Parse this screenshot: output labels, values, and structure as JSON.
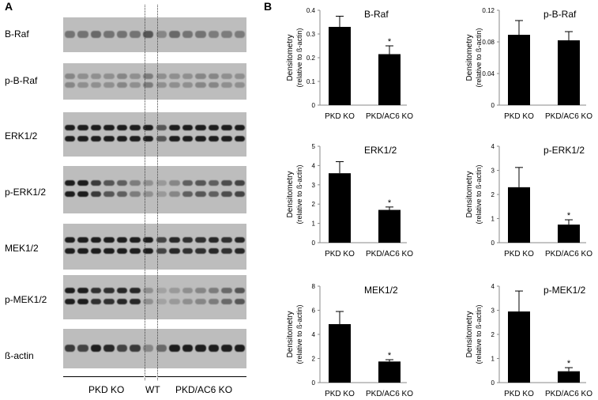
{
  "figure": {
    "panel_a_label": "A",
    "panel_b_label": "B",
    "blot_rows": [
      {
        "label": "B-Raf",
        "bands": 1,
        "shade": [
          0.45,
          0.45,
          0.5,
          0.45,
          0.45,
          0.45,
          0.6,
          0.35,
          0.5,
          0.45,
          0.45,
          0.4,
          0.4,
          0.4
        ]
      },
      {
        "label": "p-B-Raf",
        "bands": 2,
        "shade": [
          0.35,
          0.3,
          0.3,
          0.3,
          0.35,
          0.3,
          0.4,
          0.3,
          0.3,
          0.3,
          0.35,
          0.35,
          0.3,
          0.3
        ]
      },
      {
        "label": "ERK1/2",
        "bands": 2,
        "shade": [
          0.9,
          0.9,
          0.9,
          0.9,
          0.9,
          0.9,
          0.9,
          0.6,
          0.9,
          0.9,
          0.9,
          0.9,
          0.9,
          0.9
        ]
      },
      {
        "label": "p-ERK1/2",
        "bands": 2,
        "shade": [
          0.9,
          0.9,
          0.75,
          0.6,
          0.55,
          0.4,
          0.3,
          0.25,
          0.35,
          0.55,
          0.6,
          0.55,
          0.65,
          0.7
        ]
      },
      {
        "label": "MEK1/2",
        "bands": 2,
        "shade": [
          0.9,
          0.9,
          0.9,
          0.9,
          0.9,
          0.9,
          0.9,
          0.7,
          0.85,
          0.8,
          0.8,
          0.85,
          0.8,
          0.85
        ]
      },
      {
        "label": "p-MEK1/2",
        "bands": 2,
        "shade": [
          0.9,
          0.9,
          0.8,
          0.8,
          0.85,
          0.85,
          0.3,
          0.2,
          0.25,
          0.3,
          0.35,
          0.4,
          0.5,
          0.6
        ]
      },
      {
        "label": "ß-actin",
        "bands": 1,
        "shade": [
          0.75,
          0.7,
          0.9,
          0.85,
          0.7,
          0.75,
          0.35,
          0.5,
          0.9,
          0.9,
          0.9,
          0.9,
          0.9,
          0.9
        ]
      }
    ],
    "groups": [
      {
        "label": "PKD KO"
      },
      {
        "label": "WT"
      },
      {
        "label": "PKD/AC6 KO"
      }
    ]
  },
  "chart_data": [
    {
      "type": "bar",
      "title": "B-Raf",
      "categories": [
        "PKD KO",
        "PKD/AC6 KO"
      ],
      "values": [
        0.33,
        0.215
      ],
      "errors": [
        0.045,
        0.035
      ],
      "significance": [
        "",
        "*"
      ],
      "ylabel": "Densitometry",
      "ylabel2": "(relative to ß-actin)",
      "ylim": [
        0,
        0.4
      ],
      "ticks": [
        "0",
        "0.1",
        "0.2",
        "0.3",
        "0.4"
      ],
      "tick_values": [
        0,
        0.1,
        0.2,
        0.3,
        0.4
      ]
    },
    {
      "type": "bar",
      "title": "p-B-Raf",
      "categories": [
        "PKD KO",
        "PKD/AC6 KO"
      ],
      "values": [
        0.089,
        0.082
      ],
      "errors": [
        0.018,
        0.011
      ],
      "significance": [
        "",
        ""
      ],
      "ylabel": "Densitometry",
      "ylabel2": "(relative to ß-actin)",
      "ylim": [
        0,
        0.12
      ],
      "ticks": [
        "0",
        "0.04",
        "0.08",
        "0.12"
      ],
      "tick_values": [
        0,
        0.04,
        0.08,
        0.12
      ]
    },
    {
      "type": "bar",
      "title": "ERK1/2",
      "categories": [
        "PKD KO",
        "PKD/AC6 KO"
      ],
      "values": [
        3.6,
        1.7
      ],
      "errors": [
        0.6,
        0.15
      ],
      "significance": [
        "",
        "*"
      ],
      "ylabel": "Densitometry",
      "ylabel2": "(relative to ß-actin)",
      "ylim": [
        0,
        5
      ],
      "ticks": [
        "0",
        "1",
        "2",
        "3",
        "4",
        "5"
      ],
      "tick_values": [
        0,
        1,
        2,
        3,
        4,
        5
      ]
    },
    {
      "type": "bar",
      "title": "p-ERK1/2",
      "categories": [
        "PKD KO",
        "PKD/AC6 KO"
      ],
      "values": [
        2.3,
        0.75
      ],
      "errors": [
        0.82,
        0.2
      ],
      "significance": [
        "",
        "*"
      ],
      "ylabel": "Densitometry",
      "ylabel2": "(relative to ß-actin)",
      "ylim": [
        0,
        4
      ],
      "ticks": [
        "0",
        "1",
        "2",
        "3",
        "4"
      ],
      "tick_values": [
        0,
        1,
        2,
        3,
        4
      ]
    },
    {
      "type": "bar",
      "title": "MEK1/2",
      "categories": [
        "PKD KO",
        "PKD/AC6 KO"
      ],
      "values": [
        4.85,
        1.75
      ],
      "errors": [
        1.05,
        0.15
      ],
      "significance": [
        "",
        "*"
      ],
      "ylabel": "Densitometry",
      "ylabel2": "(relative to ß-actin)",
      "ylim": [
        0,
        8
      ],
      "ticks": [
        "0",
        "2",
        "4",
        "6",
        "8"
      ],
      "tick_values": [
        0,
        2,
        4,
        6,
        8
      ]
    },
    {
      "type": "bar",
      "title": "p-MEK1/2",
      "categories": [
        "PKD KO",
        "PKD/AC6 KO"
      ],
      "values": [
        2.95,
        0.47
      ],
      "errors": [
        0.85,
        0.15
      ],
      "significance": [
        "",
        "*"
      ],
      "ylabel": "Densitometry",
      "ylabel2": "(relative to ß-actin)",
      "ylim": [
        0,
        4
      ],
      "ticks": [
        "0",
        "1",
        "2",
        "3",
        "4"
      ],
      "tick_values": [
        0,
        1,
        2,
        3,
        4
      ]
    }
  ]
}
